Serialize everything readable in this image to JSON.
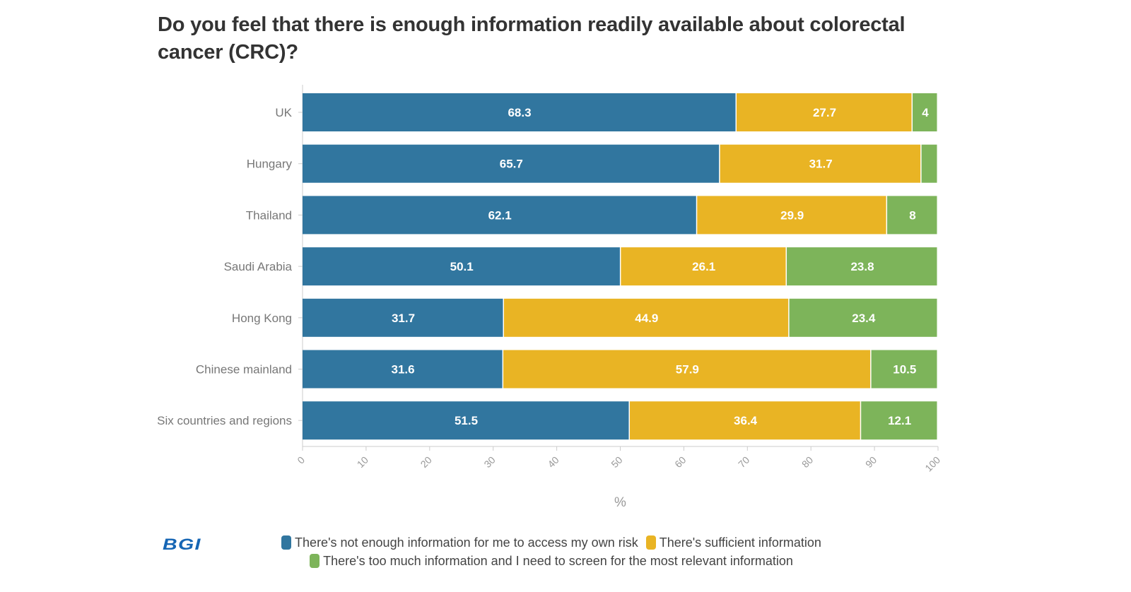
{
  "chart_data": {
    "type": "bar",
    "orientation": "horizontal",
    "stacked": true,
    "title": "Do you feel that there is enough information readily available about colorectal cancer (CRC)?",
    "xlabel": "%",
    "ylabel": "",
    "xlim": [
      0,
      100
    ],
    "xticks": [
      0,
      10,
      20,
      30,
      40,
      50,
      60,
      70,
      80,
      90,
      100
    ],
    "grid": false,
    "legend_position": "bottom",
    "categories": [
      "UK",
      "Hungary",
      "Thailand",
      "Saudi Arabia",
      "Hong Kong",
      "Chinese mainland",
      "Six countries and regions"
    ],
    "series": [
      {
        "name": "There's not enough information for me to access my own risk",
        "color": "#31769f",
        "values": [
          68.3,
          65.7,
          62.1,
          50.1,
          31.7,
          31.6,
          51.5
        ]
      },
      {
        "name": "There's sufficient information",
        "color": "#e9b424",
        "values": [
          27.7,
          31.7,
          29.9,
          26.1,
          44.9,
          57.9,
          36.4
        ]
      },
      {
        "name": "There's too much information and I need to screen for the most relevant information",
        "color": "#7db45a",
        "values": [
          4,
          2.6,
          8,
          23.8,
          23.4,
          10.5,
          12.1
        ]
      }
    ]
  },
  "logo": "BGI"
}
